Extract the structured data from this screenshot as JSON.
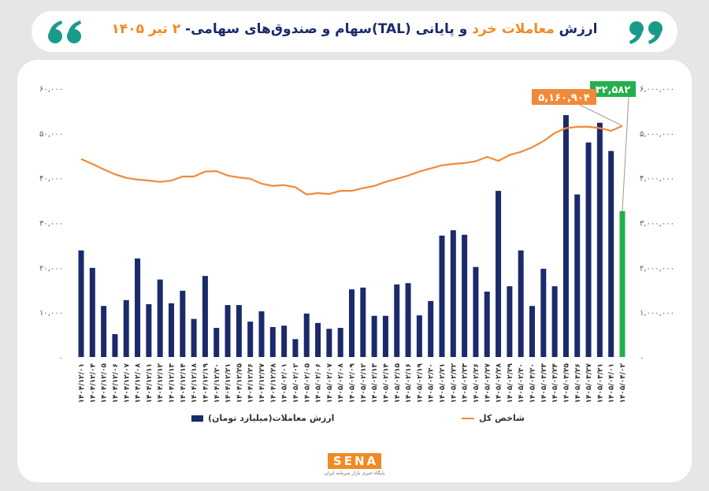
{
  "chart_data": {
    "type": "bar",
    "title": [
      {
        "text": "ارزش ",
        "color": "#1b2a6b"
      },
      {
        "text": "معاملات خرد",
        "color": "#f08a24"
      },
      {
        "text": " و پایانی (TAL)سهام و صندوق‌های سهامی- ",
        "color": "#1b2a6b"
      },
      {
        "text": "۲ تیر ۱۴۰۵",
        "color": "#f08a24"
      }
    ],
    "categories": [
      "۱۴۰۴/۱۲/۰۱",
      "۱۴۰۴/۱۲/۰۴",
      "۱۴۰۴/۱۲/۰۵",
      "۱۴۰۴/۱۲/۰۶",
      "۱۴۰۴/۱۲/۰۷",
      "۱۴۰۴/۱۲/۰۸",
      "۱۴۰۴/۱۲/۱۱",
      "۱۴۰۴/۱۲/۱۲",
      "۱۴۰۴/۱۲/۱۳",
      "۱۴۰۴/۱۲/۱۴",
      "۱۴۰۴/۱۲/۱۸",
      "۱۴۰۴/۱۲/۱۹",
      "۱۴۰۴/۱۲/۲۰",
      "۱۴۰۴/۱۲/۲۱",
      "۱۴۰۴/۱۲/۲۵",
      "۱۴۰۴/۱۲/۲۶",
      "۱۴۰۴/۱۲/۲۷",
      "۱۴۰۴/۱۲/۲۸",
      "۱۴۰۵/۰۲/۰۱",
      "۱۴۰۵/۰۲/۰۲",
      "۱۴۰۵/۰۲/۰۵",
      "۱۴۰۵/۰۲/۰۶",
      "۱۴۰۵/۰۲/۰۷",
      "۱۴۰۵/۰۲/۰۸",
      "۱۴۰۵/۰۲/۰۹",
      "۱۴۰۵/۰۲/۱۲",
      "۱۴۰۵/۰۲/۱۳",
      "۱۴۰۵/۰۲/۱۴",
      "۱۴۰۵/۰۲/۱۵",
      "۱۴۰۵/۰۲/۱۶",
      "۱۴۰۵/۰۲/۱۹",
      "۱۴۰۵/۰۲/۲۰",
      "۱۴۰۵/۰۲/۲۱",
      "۱۴۰۵/۰۲/۲۲",
      "۱۴۰۵/۰۲/۲۳",
      "۱۴۰۵/۰۲/۲۶",
      "۱۴۰۵/۰۲/۲۷",
      "۱۴۰۵/۰۲/۲۸",
      "۱۴۰۵/۰۲/۲۹",
      "۱۴۰۵/۰۲/۳۰",
      "۱۴۰۵/۰۳/۲۰",
      "۱۴۰۵/۰۳/۲۳",
      "۱۴۰۵/۰۳/۲۴",
      "۱۴۰۵/۰۳/۲۵",
      "۱۴۰۵/۰۳/۲۶",
      "۱۴۰۵/۰۳/۲۷",
      "۱۴۰۵/۰۳/۳۱",
      "۱۴۰۵/۰۴/۰۱",
      "۱۴۰۵/۰۴/۰۲"
    ],
    "series": [
      {
        "name": "ارزش معاملات(میلیارد تومان)",
        "type": "bar",
        "color": "#1b2a6b",
        "last_color": "#22b04b",
        "values": [
          23800,
          19900,
          11400,
          5100,
          12700,
          22000,
          11800,
          17300,
          12000,
          14800,
          8500,
          18100,
          6500,
          11600,
          11600,
          7900,
          10200,
          6700,
          7000,
          4000,
          9700,
          7600,
          6300,
          6500,
          15100,
          15500,
          9200,
          9200,
          16200,
          16500,
          9300,
          12500,
          27100,
          28300,
          27300,
          20100,
          14600,
          37100,
          15800,
          23800,
          11400,
          19700,
          15800,
          54000,
          36300,
          47900,
          52300,
          46000,
          32582
        ],
        "value_labels": [
          null,
          null,
          null,
          null,
          null,
          null,
          null,
          null,
          null,
          null,
          null,
          null,
          null,
          null,
          null,
          null,
          null,
          null,
          null,
          null,
          null,
          null,
          null,
          null,
          null,
          null,
          null,
          null,
          null,
          null,
          null,
          null,
          null,
          null,
          null,
          null,
          null,
          null,
          null,
          null,
          null,
          null,
          null,
          null,
          null,
          null,
          null,
          null,
          "۳۲,۵۸۲"
        ]
      },
      {
        "name": "شاخص کل",
        "type": "line",
        "axis": "y2",
        "color": "#f08a3a",
        "values": [
          4420000,
          4310000,
          4190000,
          4080000,
          4000000,
          3960000,
          3940000,
          3910000,
          3940000,
          4030000,
          4030000,
          4140000,
          4150000,
          4050000,
          4010000,
          3980000,
          3870000,
          3820000,
          3840000,
          3790000,
          3630000,
          3660000,
          3640000,
          3710000,
          3710000,
          3770000,
          3820000,
          3910000,
          3980000,
          4050000,
          4140000,
          4210000,
          4280000,
          4310000,
          4330000,
          4370000,
          4470000,
          4380000,
          4510000,
          4580000,
          4680000,
          4820000,
          5000000,
          5110000,
          5140000,
          5140000,
          5110000,
          5050000,
          5160904
        ],
        "value_labels": [
          null,
          null,
          null,
          null,
          null,
          null,
          null,
          null,
          null,
          null,
          null,
          null,
          null,
          null,
          null,
          null,
          null,
          null,
          null,
          null,
          null,
          null,
          null,
          null,
          null,
          null,
          null,
          null,
          null,
          null,
          null,
          null,
          null,
          null,
          null,
          null,
          null,
          null,
          null,
          null,
          null,
          null,
          null,
          null,
          null,
          null,
          null,
          null,
          "۵,۱۶۰,۹۰۴"
        ]
      }
    ],
    "ylim": [
      0,
      60000
    ],
    "yticks": [
      {
        "value": 0,
        "label": "۰"
      },
      {
        "value": 10000,
        "label": "۱۰,۰۰۰"
      },
      {
        "value": 20000,
        "label": "۲۰,۰۰۰"
      },
      {
        "value": 30000,
        "label": "۳۰,۰۰۰"
      },
      {
        "value": 40000,
        "label": "۴۰,۰۰۰"
      },
      {
        "value": 50000,
        "label": "۵۰,۰۰۰"
      },
      {
        "value": 60000,
        "label": "۶۰,۰۰۰"
      }
    ],
    "y2lim": [
      0,
      6000000
    ],
    "y2ticks": [
      {
        "value": 0,
        "label": "۰"
      },
      {
        "value": 1000000,
        "label": "۱,۰۰۰,۰۰۰"
      },
      {
        "value": 2000000,
        "label": "۲,۰۰۰,۰۰۰"
      },
      {
        "value": 3000000,
        "label": "۳,۰۰۰,۰۰۰"
      },
      {
        "value": 4000000,
        "label": "۴,۰۰۰,۰۰۰"
      },
      {
        "value": 5000000,
        "label": "۵,۰۰۰,۰۰۰"
      },
      {
        "value": 6000000,
        "label": "۶,۰۰۰,۰۰۰"
      }
    ],
    "grid": false
  },
  "brand": {
    "logo": "SENA",
    "tagline": "پایگاه خبری بازار سرمایه ایران"
  }
}
